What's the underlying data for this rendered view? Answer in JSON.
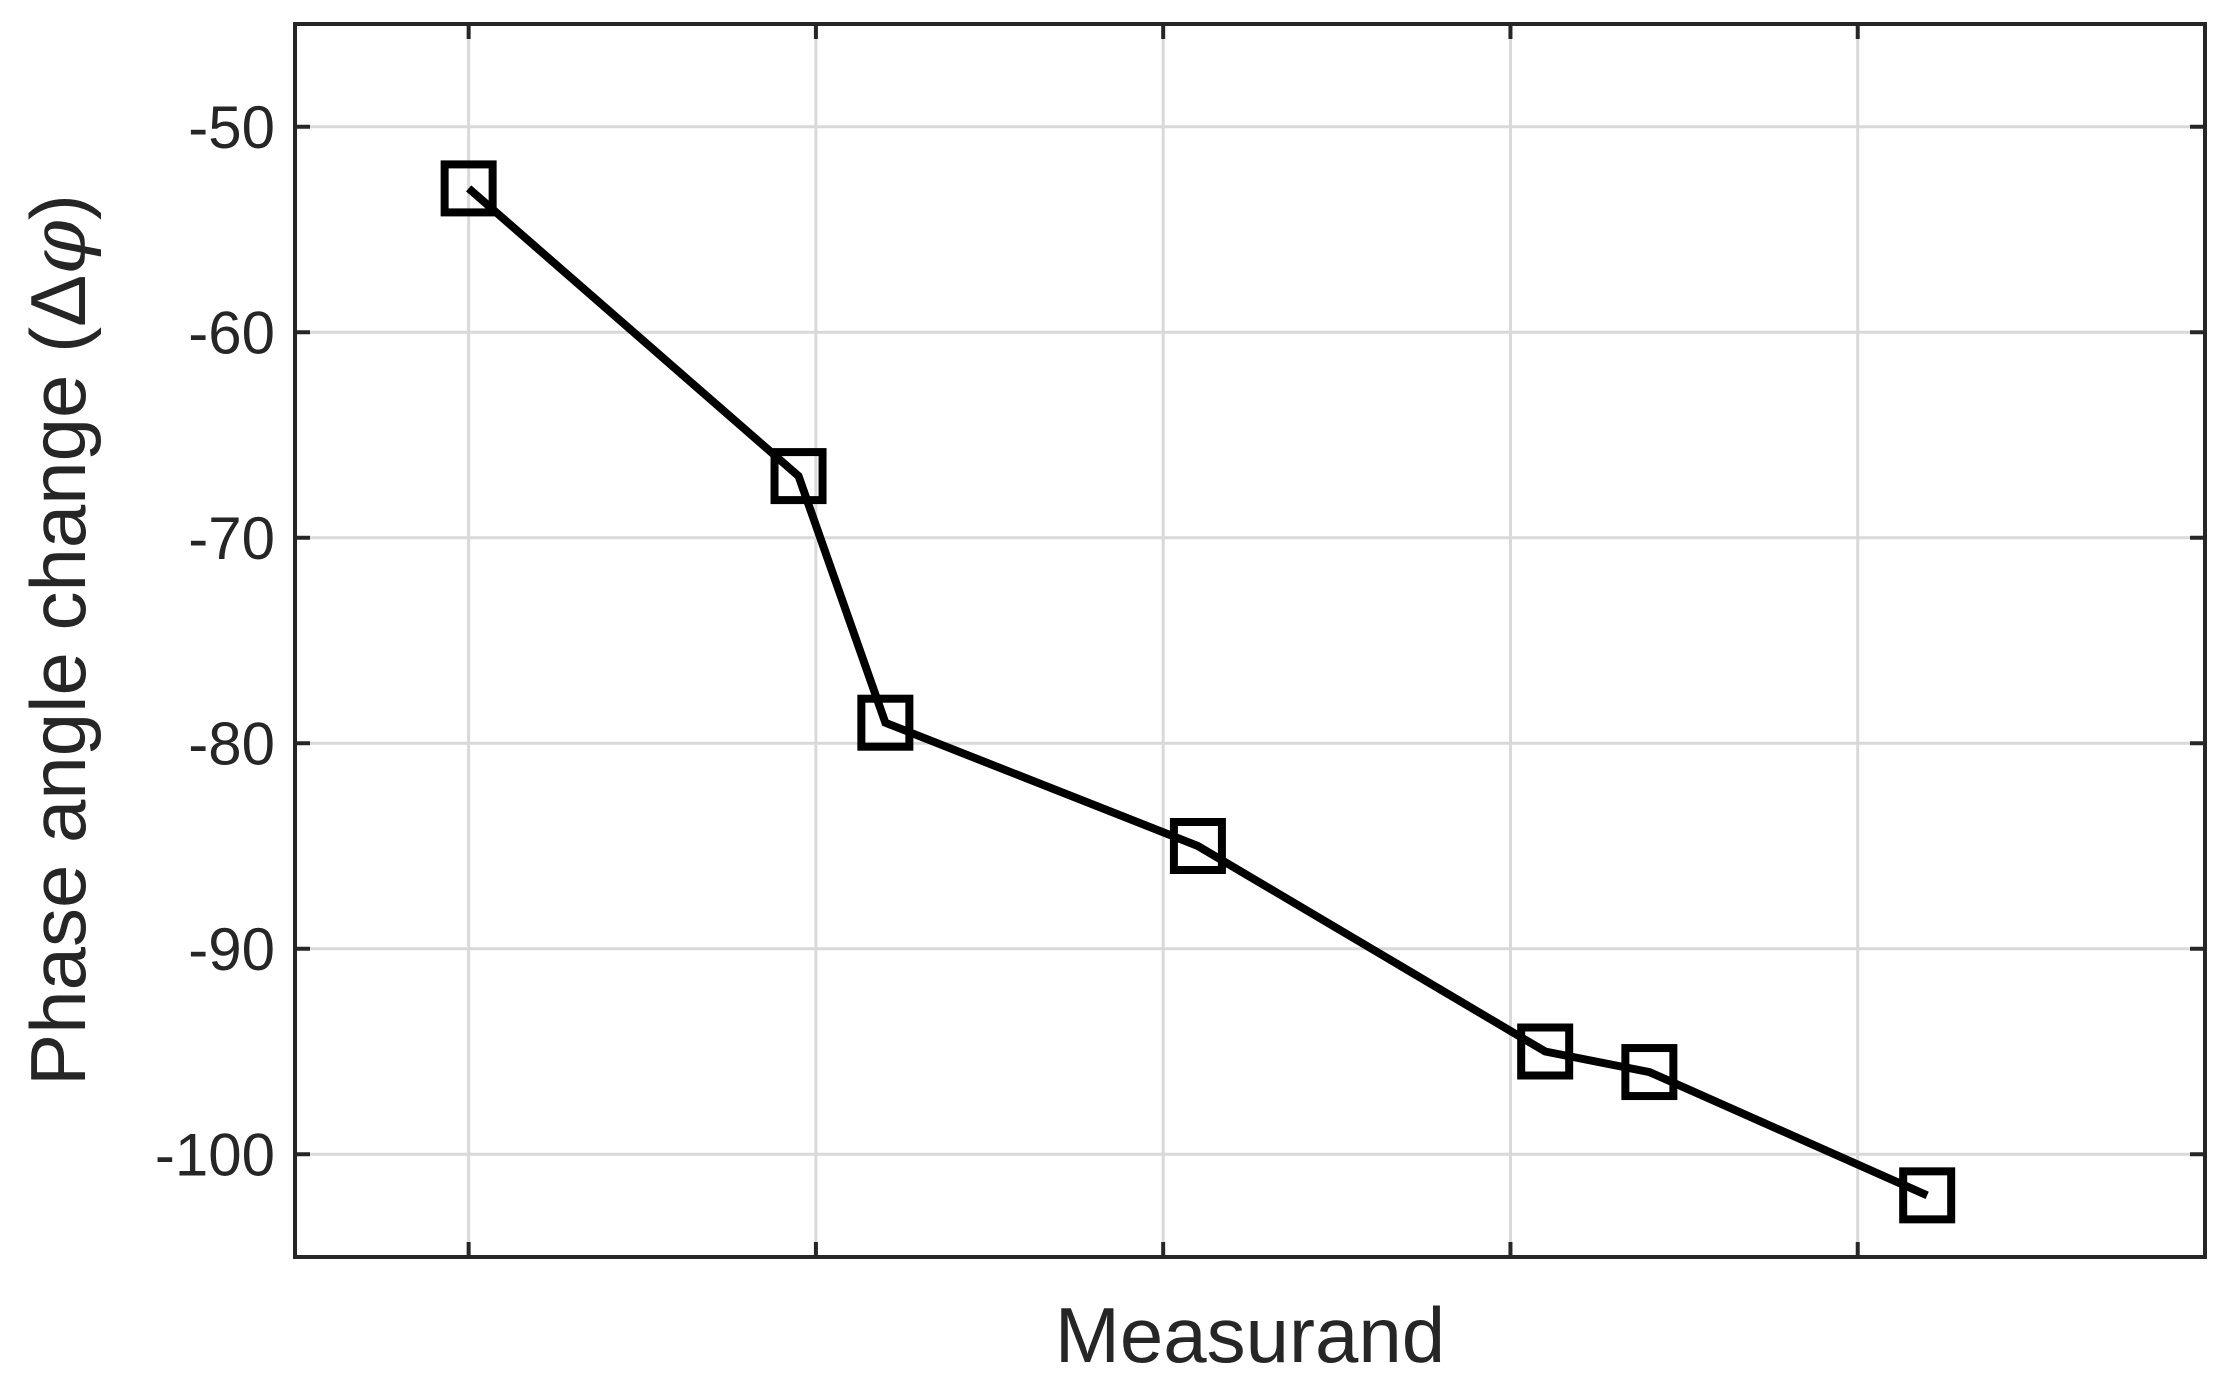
{
  "chart_data": {
    "type": "line",
    "xlabel": "Measurand",
    "ylabel_text": "Phase angle change (",
    "ylabel_delta": "Δ",
    "ylabel_phi": "φ",
    "ylabel_close": ")",
    "ylabel": "Phase angle change (Δφ)",
    "xlim": [
      0.5,
      6.0
    ],
    "ylim": [
      -105,
      -45
    ],
    "x_ticks": [
      1,
      2,
      3,
      4,
      5
    ],
    "y_ticks": [
      -100,
      -90,
      -80,
      -70,
      -60,
      -50
    ],
    "y_tick_labels": [
      "-100",
      "-90",
      "-80",
      "-70",
      "-60",
      "-50"
    ],
    "grid": true,
    "series": [
      {
        "x": [
          1.0,
          1.95,
          2.2,
          3.1,
          4.1,
          4.4,
          5.2
        ],
        "y": [
          -53,
          -67,
          -79,
          -85,
          -95,
          -96,
          -102
        ],
        "marker": "square",
        "color": "#000000"
      }
    ]
  }
}
